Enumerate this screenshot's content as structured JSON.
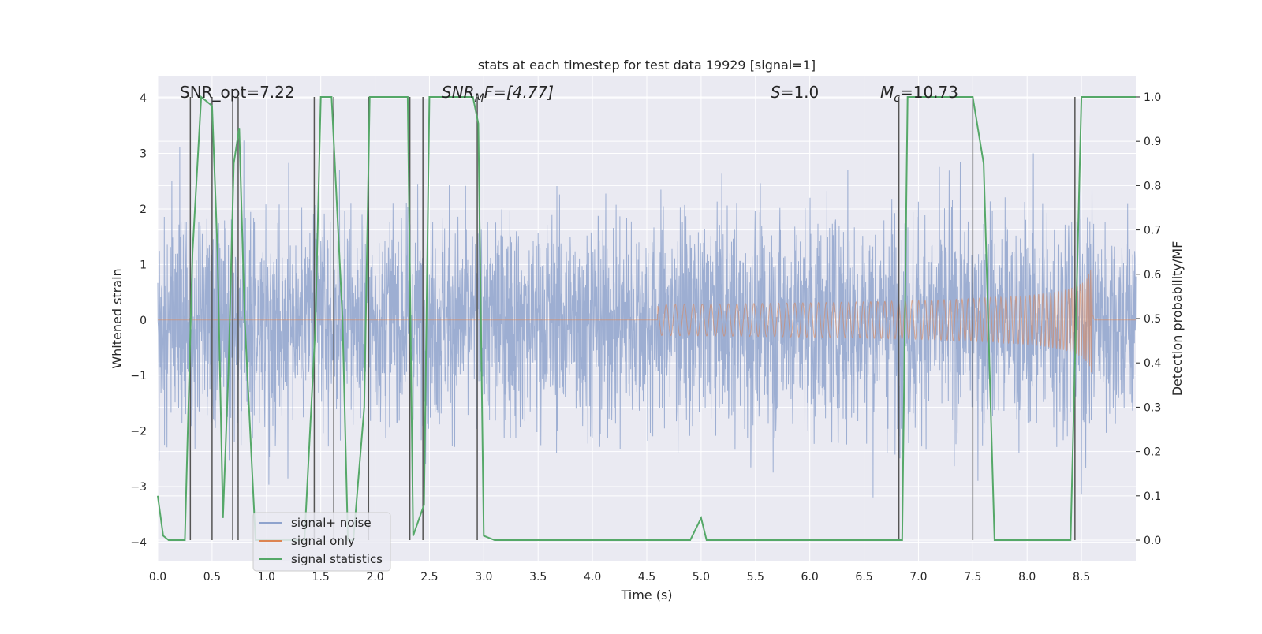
{
  "chart_data": {
    "type": "line",
    "title": "stats at each timestep for test data 19929 [signal=1]",
    "xlabel": "Time (s)",
    "ylabel": "Whitened strain",
    "ylabel_right": "Detection probability/MF",
    "xlim": [
      0.0,
      9.0
    ],
    "ylim": [
      -4.35,
      4.4
    ],
    "ylim_right": [
      -0.048,
      1.048
    ],
    "xticks": [
      "0.0",
      "0.5",
      "1.0",
      "1.5",
      "2.0",
      "2.5",
      "3.0",
      "3.5",
      "4.0",
      "4.5",
      "5.0",
      "5.5",
      "6.0",
      "6.5",
      "7.0",
      "7.5",
      "8.0",
      "8.5"
    ],
    "yticks_left": [
      "4",
      "3",
      "2",
      "1",
      "0",
      "−1",
      "−2",
      "−3",
      "−4"
    ],
    "yticks_left_values": [
      4,
      3,
      2,
      1,
      0,
      -1,
      -2,
      -3,
      -4
    ],
    "yticks_right": [
      "1.0",
      "0.9",
      "0.8",
      "0.7",
      "0.6",
      "0.5",
      "0.4",
      "0.3",
      "0.2",
      "0.1",
      "0.0"
    ],
    "yticks_right_values": [
      1.0,
      0.9,
      0.8,
      0.7,
      0.6,
      0.5,
      0.4,
      0.3,
      0.2,
      0.1,
      0.0
    ],
    "grid": true,
    "legend_placement": "lower-left",
    "annotations": {
      "snr_opt": "SNR_opt=7.22",
      "snr_mf_main": "SNR",
      "snr_mf_sub": "M",
      "snr_mf_rest": "F=[4.77]",
      "s_main": "S",
      "s_rest": "=1.0",
      "mc_main": "M",
      "mc_sub": "c",
      "mc_rest": "=10.73"
    },
    "series": [
      {
        "name": "signal+ noise",
        "color": "#8fa3cd",
        "description_values": "dense whitened noise, amplitude mostly within ±3 (peaks to about ±4) sampled across 0–9 s"
      },
      {
        "name": "signal only",
        "color": "#dd8452",
        "chirp_start_s": 4.6,
        "chirp_end_s": 8.62,
        "chirp_peak_amplitude": 1.05
      },
      {
        "name": "signal statistics",
        "color": "#55a868",
        "x": [
          0.0,
          0.05,
          0.1,
          0.25,
          0.32,
          0.4,
          0.5,
          0.55,
          0.6,
          0.65,
          0.7,
          0.75,
          0.8,
          0.9,
          1.35,
          1.45,
          1.5,
          1.6,
          1.7,
          1.75,
          1.8,
          1.9,
          1.95,
          2.0,
          2.3,
          2.35,
          2.45,
          2.5,
          2.9,
          2.95,
          3.0,
          3.1,
          4.9,
          5.0,
          5.05,
          6.85,
          6.9,
          7.5,
          7.6,
          7.7,
          8.4,
          8.5,
          9.0
        ],
        "values": [
          0.1,
          0.01,
          0.0,
          0.0,
          0.65,
          1.0,
          0.98,
          0.65,
          0.05,
          0.38,
          0.85,
          0.93,
          0.5,
          0.0,
          0.0,
          0.48,
          1.0,
          1.0,
          0.5,
          0.0,
          0.0,
          0.3,
          1.0,
          1.0,
          1.0,
          0.01,
          0.08,
          1.0,
          1.0,
          0.94,
          0.01,
          0.0,
          0.0,
          0.05,
          0.0,
          0.0,
          1.0,
          1.0,
          0.85,
          0.0,
          0.0,
          1.0,
          1.0
        ]
      }
    ],
    "vertical_markers_s": [
      0.3,
      0.5,
      0.69,
      0.74,
      1.44,
      1.62,
      1.94,
      2.32,
      2.44,
      2.94,
      6.82,
      7.5,
      8.44
    ],
    "vertical_marker_color": "#555555"
  },
  "legend": [
    {
      "label": "signal+ noise",
      "color": "#8fa3cd"
    },
    {
      "label": "signal only",
      "color": "#dd8452"
    },
    {
      "label": "signal statistics",
      "color": "#55a868"
    }
  ]
}
